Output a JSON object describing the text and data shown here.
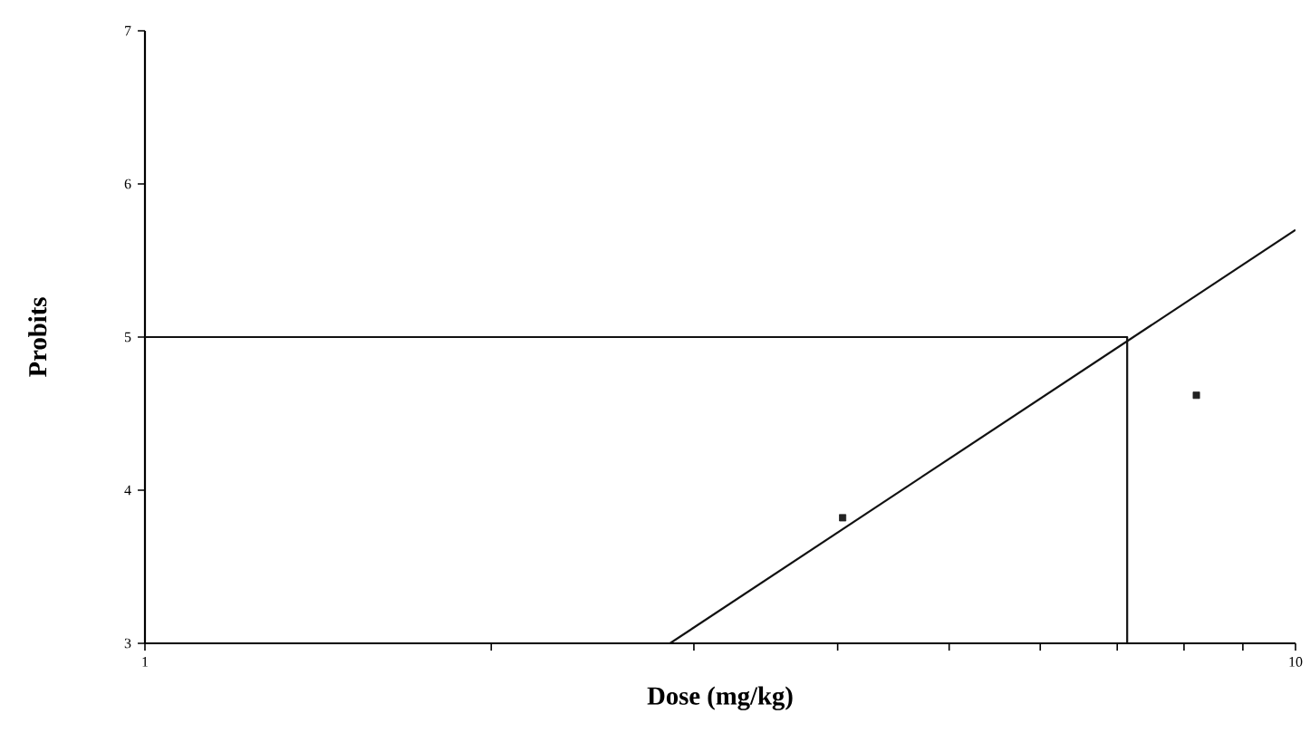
{
  "chart_data": {
    "type": "scatter",
    "xlabel": "Dose (mg/kg)",
    "ylabel": "Probits",
    "log": "x",
    "xlim": [
      1,
      10
    ],
    "ylim": [
      3,
      7
    ],
    "xticks": [
      1,
      {
        "value": 2,
        "label": null
      },
      {
        "value": 3,
        "label": null
      },
      {
        "value": 4,
        "label": null
      },
      {
        "value": 5,
        "label": null
      },
      {
        "value": 6,
        "label": null
      },
      {
        "value": 7,
        "label": null
      },
      {
        "value": 8,
        "label": null
      },
      {
        "value": 9,
        "label": null
      },
      10
    ],
    "yticks": [
      3,
      4,
      5,
      6,
      7
    ],
    "grid": false,
    "series": [
      {
        "color": "#222222",
        "marker": "square",
        "x": [
          4.04,
          8.2
        ],
        "values": [
          3.82,
          4.62
        ]
      },
      {
        "type": "line",
        "color": "#111111",
        "marker": "none",
        "line_style": "solid",
        "x": [
          2.86,
          10
        ],
        "values": [
          3,
          5.7
        ]
      },
      {
        "type": "line",
        "color": "#111111",
        "marker": "none",
        "line_style": "solid",
        "x": [
          1,
          7.14,
          7.14
        ],
        "values": [
          5,
          5,
          3
        ]
      }
    ]
  }
}
